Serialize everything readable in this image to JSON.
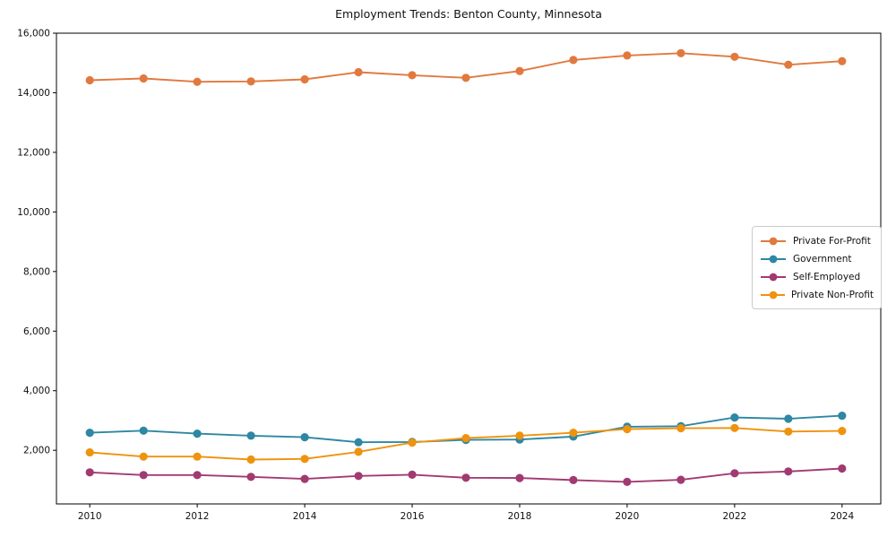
{
  "chart_data": {
    "type": "line",
    "title": "Employment Trends: Benton County, Minnesota",
    "xlabel": "",
    "ylabel": "",
    "x": [
      2010,
      2011,
      2012,
      2013,
      2014,
      2015,
      2016,
      2017,
      2018,
      2019,
      2020,
      2021,
      2022,
      2023,
      2024
    ],
    "series": [
      {
        "name": "Private For-Profit",
        "color": "#e1793e",
        "values": [
          14420,
          14480,
          14370,
          14380,
          14450,
          14690,
          14590,
          14500,
          14730,
          15100,
          15250,
          15330,
          15210,
          14940,
          15060
        ]
      },
      {
        "name": "Government",
        "color": "#2e87a3",
        "values": [
          2590,
          2660,
          2560,
          2490,
          2440,
          2270,
          2280,
          2350,
          2360,
          2460,
          2790,
          2810,
          3100,
          3060,
          3160
        ]
      },
      {
        "name": "Self-Employed",
        "color": "#a23a72",
        "values": [
          1260,
          1170,
          1170,
          1110,
          1040,
          1140,
          1180,
          1080,
          1070,
          1000,
          940,
          1010,
          1230,
          1290,
          1390
        ]
      },
      {
        "name": "Private Non-Profit",
        "color": "#ef930e",
        "values": [
          1930,
          1790,
          1790,
          1690,
          1710,
          1950,
          2260,
          2410,
          2490,
          2590,
          2710,
          2740,
          2750,
          2630,
          2650
        ]
      }
    ],
    "xticks": [
      2010,
      2012,
      2014,
      2016,
      2018,
      2020,
      2022,
      2024
    ],
    "xtick_labels": [
      "2010",
      "2012",
      "2014",
      "2016",
      "2018",
      "2020",
      "2022",
      "2024"
    ],
    "yticks": [
      2000,
      4000,
      6000,
      8000,
      10000,
      12000,
      14000,
      16000
    ],
    "ytick_labels": [
      "2,000",
      "4,000",
      "6,000",
      "8,000",
      "10,000",
      "12,000",
      "14,000",
      "16,000"
    ],
    "xlim": [
      2009.38,
      2024.72
    ],
    "ylim": [
      200,
      16000
    ],
    "grid": false,
    "legend_position": "center right",
    "marker": "circle",
    "axes_color": "#000000"
  }
}
